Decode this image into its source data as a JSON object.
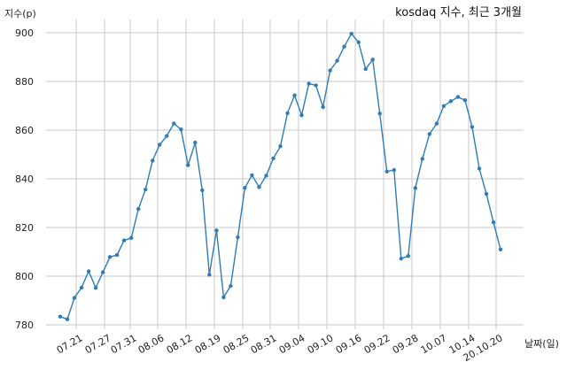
{
  "chart_data": {
    "type": "line",
    "title": "kosdaq 지수, 최근 3개월",
    "xlabel": "날짜(일)",
    "ylabel": "지수(p)",
    "ylim": [
      780,
      900
    ],
    "yticks": [
      780,
      800,
      820,
      840,
      860,
      880,
      900
    ],
    "grid": true,
    "xtick_labels": [
      "07.21",
      "07.27",
      "07.31",
      "08.06",
      "08.12",
      "08.19",
      "08.25",
      "08.31",
      "09.04",
      "09.10",
      "09.16",
      "09.22",
      "09.28",
      "10.07",
      "10.14",
      "20.10.20"
    ],
    "series": [
      {
        "values": [
          783.4,
          782.3,
          791.1,
          795.3,
          802.0,
          795.2,
          801.6,
          807.9,
          808.7,
          814.7,
          815.7,
          827.6,
          835.6,
          847.5,
          854.0,
          857.6,
          862.7,
          860.3,
          845.6,
          854.9,
          835.3,
          800.6,
          818.8,
          791.3,
          796.0,
          816.0,
          836.3,
          841.5,
          836.6,
          841.3,
          848.4,
          853.4,
          867.0,
          874.3,
          866.1,
          879.1,
          878.4,
          869.5,
          884.5,
          888.5,
          894.3,
          899.6,
          896.1,
          885.1,
          889.0,
          866.8,
          843.0,
          843.6,
          807.2,
          808.3,
          836.2,
          848.2,
          858.4,
          862.7,
          869.9,
          871.9,
          873.6,
          872.3,
          861.3,
          844.2,
          833.8,
          822.1,
          811.0
        ]
      }
    ],
    "colors": {
      "line": "#2e7db8",
      "grid": "#c8c8c8"
    }
  }
}
